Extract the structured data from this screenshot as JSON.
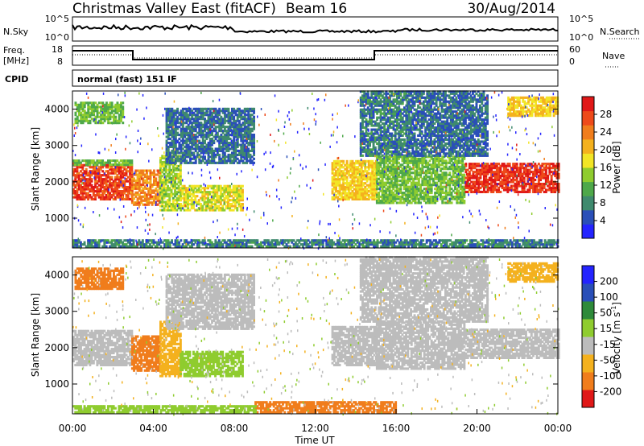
{
  "header": {
    "title": "Christmas Valley East (fitACF)",
    "beam": "Beam 16",
    "date": "30/Aug/2014"
  },
  "top_panel": {
    "nsky_label": "N.Sky",
    "nsky_ticks": [
      "10^5",
      "10^0"
    ],
    "nsearch_label": "N.Search",
    "nsearch_ticks": [
      "10^5",
      "10^0"
    ],
    "freq_label_line1": "Freq.",
    "freq_label_line2": "[MHz]",
    "freq_ticks": [
      "18",
      "8"
    ],
    "nave_label": "Nave",
    "nave_ticks": [
      "60",
      "0"
    ],
    "cpid_label": "CPID",
    "cpid_value": "normal (fast) 151 IF"
  },
  "colors": {
    "power": [
      "#2424ff",
      "#2a4fb8",
      "#3f8a6e",
      "#4ea84a",
      "#8fcc2f",
      "#f2e526",
      "#f4b11e",
      "#f07d1c",
      "#ee4a1a",
      "#e01818"
    ],
    "velocity": [
      "#e01818",
      "#f07d1c",
      "#f4b11e",
      "#bcbcbc",
      "#8fcc2f",
      "#2e8a3a",
      "#2a4fb8",
      "#2424ff"
    ]
  },
  "chart_data": [
    {
      "type": "heatmap",
      "name": "power",
      "ylabel": "Slant Range [km]",
      "ylim": [
        180,
        4500
      ],
      "xlim": [
        "00:00",
        "24:00"
      ],
      "yticks": [
        "1000",
        "2000",
        "3000",
        "4000"
      ],
      "colorbar_label": "Power [dB]",
      "colorbar_ticks": [
        "4",
        "8",
        "12",
        "16",
        "20",
        "24",
        "28"
      ],
      "regions": [
        {
          "t0": 0.0,
          "t1": 2.9,
          "r0": 1500,
          "r1": 2450,
          "v": 26
        },
        {
          "t0": 0.0,
          "t1": 2.9,
          "r0": 2450,
          "r1": 2600,
          "v": 12
        },
        {
          "t0": 0.1,
          "t1": 2.5,
          "r0": 3600,
          "r1": 4200,
          "v": 12
        },
        {
          "t0": 2.9,
          "t1": 4.3,
          "r0": 1350,
          "r1": 2300,
          "v": 22
        },
        {
          "t0": 4.3,
          "t1": 5.3,
          "r0": 1200,
          "r1": 2700,
          "v": 14
        },
        {
          "t0": 5.3,
          "t1": 8.4,
          "r0": 1200,
          "r1": 1900,
          "v": 16
        },
        {
          "t0": 4.6,
          "t1": 9.0,
          "r0": 2500,
          "r1": 4000,
          "v": 6
        },
        {
          "t0": 12.8,
          "t1": 15.0,
          "r0": 1500,
          "r1": 2600,
          "v": 18
        },
        {
          "t0": 14.2,
          "t1": 16.5,
          "r0": 2700,
          "r1": 4500,
          "v": 7
        },
        {
          "t0": 15.0,
          "t1": 19.4,
          "r0": 1400,
          "r1": 2700,
          "v": 12
        },
        {
          "t0": 16.5,
          "t1": 20.5,
          "r0": 2700,
          "r1": 4500,
          "v": 6
        },
        {
          "t0": 19.4,
          "t1": 24.0,
          "r0": 1700,
          "r1": 2500,
          "v": 27
        },
        {
          "t0": 21.5,
          "t1": 24.0,
          "r0": 3800,
          "r1": 4300,
          "v": 18
        },
        {
          "t0": 0.0,
          "t1": 24.0,
          "r0": 200,
          "r1": 420,
          "v": 7
        }
      ]
    },
    {
      "type": "heatmap",
      "name": "velocity",
      "ylabel": "Slant Range [km]",
      "xlabel": "Time UT",
      "ylim": [
        180,
        4500
      ],
      "xlim": [
        "00:00",
        "24:00"
      ],
      "xticks": [
        "00:00",
        "04:00",
        "08:00",
        "12:00",
        "16:00",
        "20:00",
        "00:00"
      ],
      "yticks": [
        "1000",
        "2000",
        "3000",
        "4000"
      ],
      "colorbar_label": "Velocity [m s",
      "colorbar_exponent": "-1",
      "colorbar_ticks": [
        "-200",
        "-100",
        "-50",
        "-15",
        "15",
        "50",
        "100",
        "200"
      ],
      "regions": [
        {
          "t0": 0.0,
          "t1": 2.9,
          "r0": 1500,
          "r1": 2450,
          "v": 0
        },
        {
          "t0": 0.1,
          "t1": 2.5,
          "r0": 3600,
          "r1": 4200,
          "v": -60
        },
        {
          "t0": 2.9,
          "t1": 4.3,
          "r0": 1350,
          "r1": 2300,
          "v": -70
        },
        {
          "t0": 4.3,
          "t1": 5.3,
          "r0": 1200,
          "r1": 2700,
          "v": -40
        },
        {
          "t0": 5.3,
          "t1": 8.4,
          "r0": 1200,
          "r1": 1900,
          "v": 40
        },
        {
          "t0": 4.6,
          "t1": 9.0,
          "r0": 2500,
          "r1": 4000,
          "v": 0
        },
        {
          "t0": 12.8,
          "t1": 15.0,
          "r0": 1500,
          "r1": 2600,
          "v": 0
        },
        {
          "t0": 14.2,
          "t1": 16.5,
          "r0": 2700,
          "r1": 4500,
          "v": 0
        },
        {
          "t0": 15.0,
          "t1": 19.4,
          "r0": 1400,
          "r1": 2700,
          "v": 0
        },
        {
          "t0": 16.5,
          "t1": 20.5,
          "r0": 2700,
          "r1": 4500,
          "v": 0
        },
        {
          "t0": 19.4,
          "t1": 24.0,
          "r0": 1700,
          "r1": 2500,
          "v": 0
        },
        {
          "t0": 21.5,
          "t1": 24.0,
          "r0": 3800,
          "r1": 4300,
          "v": -40
        },
        {
          "t0": 9.0,
          "t1": 16.0,
          "r0": 200,
          "r1": 500,
          "v": -70
        },
        {
          "t0": 0.0,
          "t1": 9.0,
          "r0": 200,
          "r1": 420,
          "v": 30
        }
      ]
    }
  ]
}
